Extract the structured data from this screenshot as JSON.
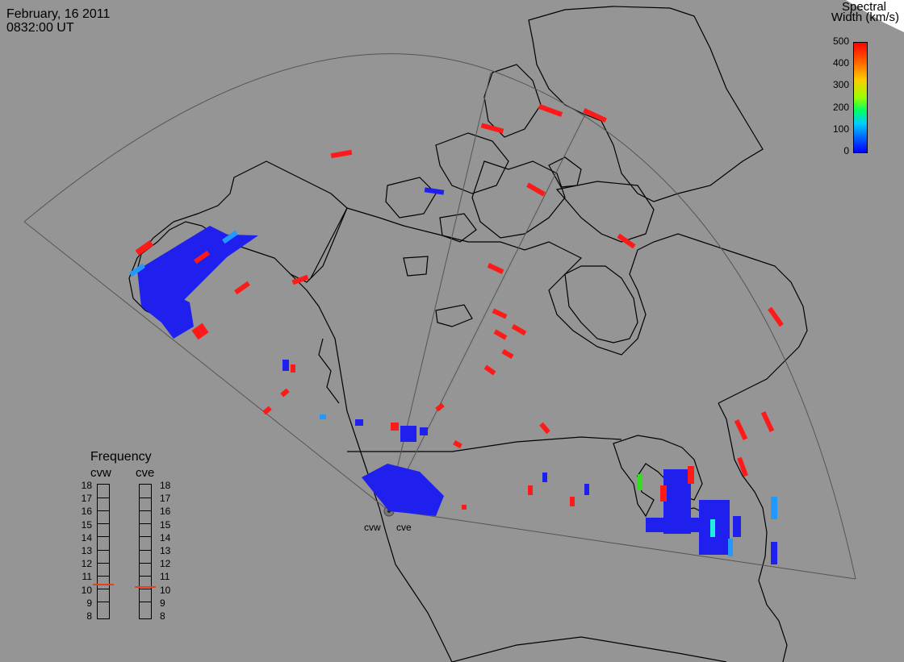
{
  "header": {
    "date": "February, 16 2011",
    "time": "0832:00 UT"
  },
  "legend": {
    "title_line1": "Spectral",
    "title_line2": "Width (km/s)",
    "ticks": [
      "500",
      "400",
      "300",
      "200",
      "100",
      "0"
    ],
    "colors": [
      "#ff0000",
      "#ff6600",
      "#ffcc00",
      "#99ff00",
      "#00ff66",
      "#00ccff",
      "#0066ff",
      "#0000ff"
    ]
  },
  "frequency": {
    "title": "Frequency",
    "radars": [
      {
        "name": "cvw",
        "value": 10.8
      },
      {
        "name": "cve",
        "value": 10.6
      }
    ],
    "scale": [
      "18",
      "17",
      "16",
      "15",
      "14",
      "13",
      "12",
      "11",
      "10",
      "9",
      "8"
    ],
    "marker_color": "#e8401a"
  },
  "radar_labels": [
    "cvw",
    "cve"
  ],
  "colors": {
    "background": "#959595",
    "land": "#000000",
    "fov": "#555555",
    "low_width": "#2020ee",
    "high_width": "#ff1a1a"
  }
}
